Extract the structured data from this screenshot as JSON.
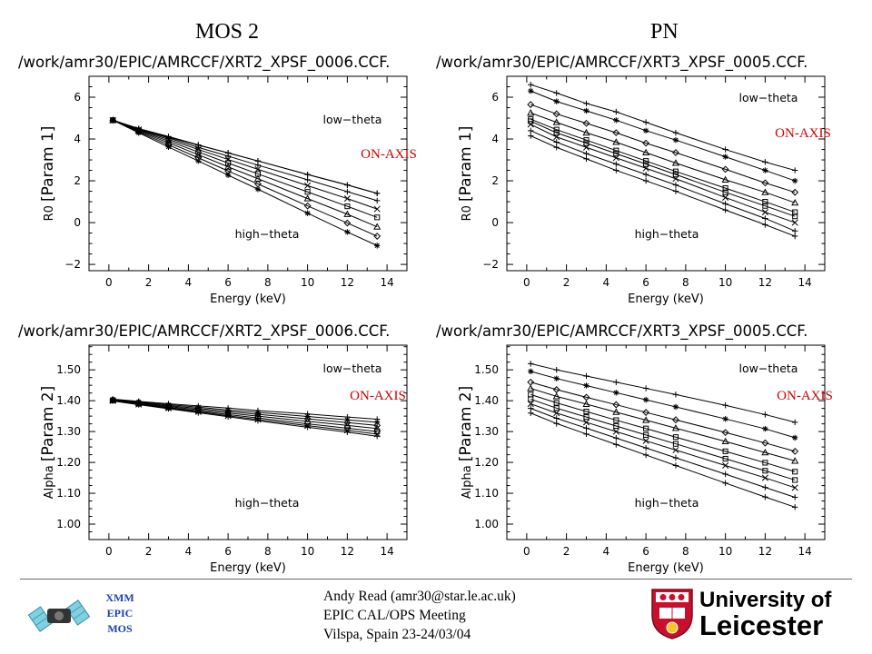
{
  "headers": {
    "left": "MOS 2",
    "right": "PN"
  },
  "footer": {
    "badge": [
      "XMM",
      "EPIC",
      "MOS"
    ],
    "lines": [
      "Andy Read (amr30@star.le.ac.uk)",
      "EPIC CAL/OPS Meeting",
      "Vilspa, Spain 23-24/03/04"
    ],
    "logo_line1": "University of",
    "logo_line2": "Leicester"
  },
  "chart_data": [
    {
      "type": "line",
      "title": "/work/amr30/EPIC/AMRCCF/XRT2_XPSF_0006.CCF.",
      "xlabel": "Energy (keV)",
      "ylabel_main": "R0",
      "ylabel_param": "[Param 1]",
      "xlim": [
        -1,
        15
      ],
      "ylim": [
        -2.3,
        7
      ],
      "xticks": [
        0,
        2,
        4,
        6,
        8,
        10,
        12,
        14
      ],
      "yticks": [
        -2,
        0,
        2,
        4,
        6
      ],
      "tick_labels_y": [
        "−2",
        "0",
        "2",
        "4",
        "6"
      ],
      "annotations": [
        "low−theta",
        "high−theta"
      ],
      "onaxis": "ON-AXIS",
      "markers": [
        "plus",
        "asterisk",
        "diamond",
        "triangle",
        "square",
        "cross",
        "plus"
      ],
      "x": [
        0.2,
        1.5,
        3,
        4.5,
        6,
        7.5,
        10,
        12,
        13.5
      ],
      "series": [
        {
          "values": [
            4.9,
            4.45,
            4.09,
            3.7,
            3.34,
            2.95,
            2.3,
            1.8,
            1.4
          ]
        },
        {
          "values": [
            4.9,
            4.3,
            3.62,
            2.95,
            2.27,
            1.6,
            0.45,
            -0.45,
            -1.1
          ]
        },
        {
          "values": [
            4.9,
            4.34,
            3.72,
            3.1,
            2.47,
            1.85,
            0.8,
            -0.02,
            -0.65
          ]
        },
        {
          "values": [
            4.9,
            4.38,
            3.82,
            3.25,
            2.67,
            2.1,
            1.15,
            0.4,
            -0.2
          ]
        },
        {
          "values": [
            4.9,
            4.42,
            3.9,
            3.38,
            2.85,
            2.33,
            1.47,
            0.78,
            0.25
          ]
        },
        {
          "values": [
            4.9,
            4.45,
            3.98,
            3.5,
            3.02,
            2.55,
            1.77,
            1.15,
            0.65
          ]
        },
        {
          "values": [
            4.9,
            4.47,
            4.05,
            3.6,
            3.18,
            2.75,
            2.05,
            1.48,
            1.05
          ]
        },
        {
          "values": [
            4.9,
            4.5,
            4.12,
            3.72,
            3.33,
            2.95,
            2.3,
            1.8,
            1.4
          ]
        }
      ]
    },
    {
      "type": "line",
      "title": "/work/amr30/EPIC/AMRCCF/XRT3_XPSF_0005.CCF.",
      "xlabel": "Energy (keV)",
      "ylabel_main": "R0",
      "ylabel_param": "[Param 1]",
      "xlim": [
        -1,
        15
      ],
      "ylim": [
        -2.3,
        7
      ],
      "xticks": [
        0,
        2,
        4,
        6,
        8,
        10,
        12,
        14
      ],
      "yticks": [
        -2,
        0,
        2,
        4,
        6
      ],
      "tick_labels_y": [
        "−2",
        "0",
        "2",
        "4",
        "6"
      ],
      "annotations": [
        "low−theta",
        "high−theta"
      ],
      "onaxis": "ON-AXIS",
      "x": [
        0.2,
        1.5,
        3,
        4.5,
        6,
        7.5,
        10,
        12,
        13.5
      ],
      "series": [
        {
          "values": [
            6.6,
            6.2,
            5.7,
            5.3,
            4.8,
            4.3,
            3.5,
            2.9,
            2.5
          ]
        },
        {
          "values": [
            6.3,
            5.8,
            5.35,
            4.9,
            4.4,
            3.95,
            3.15,
            2.5,
            2.0
          ]
        },
        {
          "values": [
            5.65,
            5.2,
            4.75,
            4.3,
            3.8,
            3.35,
            2.55,
            1.9,
            1.45
          ]
        },
        {
          "values": [
            5.25,
            4.8,
            4.3,
            3.85,
            3.35,
            2.85,
            2.05,
            1.45,
            0.95
          ]
        },
        {
          "values": [
            4.95,
            4.45,
            3.95,
            3.45,
            2.95,
            2.45,
            1.65,
            1.0,
            0.5
          ]
        },
        {
          "values": [
            4.85,
            4.3,
            3.8,
            3.3,
            2.8,
            2.3,
            1.45,
            0.8,
            0.3
          ]
        },
        {
          "values": [
            4.7,
            4.1,
            3.6,
            3.1,
            2.6,
            2.1,
            1.2,
            0.5,
            0.0
          ]
        },
        {
          "values": [
            4.4,
            3.85,
            3.3,
            2.8,
            2.3,
            1.8,
            0.9,
            0.2,
            -0.4
          ]
        },
        {
          "values": [
            4.15,
            3.6,
            3.05,
            2.5,
            2.0,
            1.5,
            0.6,
            -0.1,
            -0.65
          ]
        }
      ]
    },
    {
      "type": "line",
      "title": "/work/amr30/EPIC/AMRCCF/XRT2_XPSF_0006.CCF.",
      "xlabel": "Energy (keV)",
      "ylabel_main": "Alpha",
      "ylabel_param": "[Param 2]",
      "xlim": [
        -1,
        15
      ],
      "ylim": [
        0.95,
        1.58
      ],
      "xticks": [
        0,
        2,
        4,
        6,
        8,
        10,
        12,
        14
      ],
      "yticks": [
        1.0,
        1.1,
        1.2,
        1.3,
        1.4,
        1.5
      ],
      "tick_labels_y": [
        "1.00",
        "1.10",
        "1.20",
        "1.30",
        "1.40",
        "1.50"
      ],
      "annotations": [
        "low−theta",
        "high−theta"
      ],
      "onaxis": "ON-AXIS",
      "x": [
        0.2,
        1.5,
        3,
        4.5,
        6,
        7.5,
        10,
        12,
        13.5
      ],
      "series": [
        {
          "values": [
            1.405,
            1.398,
            1.39,
            1.383,
            1.376,
            1.368,
            1.357,
            1.347,
            1.34
          ]
        },
        {
          "values": [
            1.404,
            1.396,
            1.387,
            1.379,
            1.37,
            1.362,
            1.349,
            1.338,
            1.33
          ]
        },
        {
          "values": [
            1.403,
            1.394,
            1.384,
            1.375,
            1.365,
            1.356,
            1.341,
            1.329,
            1.32
          ]
        },
        {
          "values": [
            1.402,
            1.392,
            1.381,
            1.371,
            1.36,
            1.35,
            1.333,
            1.32,
            1.31
          ]
        },
        {
          "values": [
            1.401,
            1.39,
            1.378,
            1.367,
            1.355,
            1.344,
            1.325,
            1.311,
            1.3
          ]
        },
        {
          "values": [
            1.4,
            1.388,
            1.376,
            1.364,
            1.351,
            1.339,
            1.319,
            1.304,
            1.292
          ]
        },
        {
          "values": [
            1.399,
            1.387,
            1.374,
            1.361,
            1.348,
            1.335,
            1.314,
            1.298,
            1.285
          ]
        }
      ]
    },
    {
      "type": "line",
      "title": "/work/amr30/EPIC/AMRCCF/XRT3_XPSF_0005.CCF.",
      "xlabel": "Energy (keV)",
      "ylabel_main": "Alpha",
      "ylabel_param": "[Param 2]",
      "xlim": [
        -1,
        15
      ],
      "ylim": [
        0.95,
        1.58
      ],
      "xticks": [
        0,
        2,
        4,
        6,
        8,
        10,
        12,
        14
      ],
      "yticks": [
        1.0,
        1.1,
        1.2,
        1.3,
        1.4,
        1.5
      ],
      "tick_labels_y": [
        "1.00",
        "1.10",
        "1.20",
        "1.30",
        "1.40",
        "1.50"
      ],
      "annotations": [
        "low−theta",
        "high−theta"
      ],
      "onaxis": "ON-AXIS",
      "x": [
        0.2,
        1.5,
        3,
        4.5,
        6,
        7.5,
        10,
        12,
        13.5
      ],
      "series": [
        {
          "values": [
            1.52,
            1.5,
            1.48,
            1.46,
            1.44,
            1.42,
            1.385,
            1.355,
            1.33
          ]
        },
        {
          "values": [
            1.495,
            1.472,
            1.449,
            1.426,
            1.403,
            1.38,
            1.341,
            1.309,
            1.28
          ]
        },
        {
          "values": [
            1.46,
            1.436,
            1.411,
            1.387,
            1.362,
            1.338,
            1.297,
            1.263,
            1.236
          ]
        },
        {
          "values": [
            1.44,
            1.414,
            1.389,
            1.363,
            1.337,
            1.311,
            1.268,
            1.232,
            1.205
          ]
        },
        {
          "values": [
            1.42,
            1.393,
            1.365,
            1.337,
            1.31,
            1.282,
            1.236,
            1.199,
            1.17
          ]
        },
        {
          "values": [
            1.405,
            1.376,
            1.347,
            1.318,
            1.289,
            1.26,
            1.212,
            1.173,
            1.143
          ]
        },
        {
          "values": [
            1.39,
            1.36,
            1.33,
            1.3,
            1.27,
            1.24,
            1.19,
            1.15,
            1.118
          ]
        },
        {
          "values": [
            1.375,
            1.343,
            1.311,
            1.279,
            1.247,
            1.215,
            1.162,
            1.119,
            1.087
          ]
        },
        {
          "values": [
            1.36,
            1.326,
            1.292,
            1.258,
            1.224,
            1.19,
            1.133,
            1.088,
            1.055
          ]
        }
      ]
    }
  ]
}
